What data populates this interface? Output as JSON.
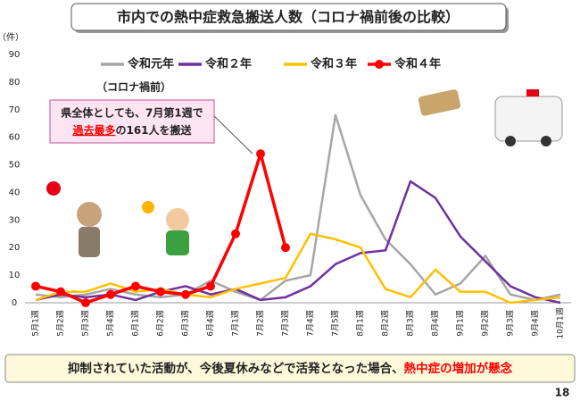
{
  "chart_data": {
    "type": "line",
    "title": "市内での熱中症救急搬送人数（コロナ禍前後の比較）",
    "y_label": "（件）",
    "categories": [
      "5月1週",
      "5月2週",
      "5月3週",
      "5月4週",
      "6月1週",
      "6月2週",
      "6月3週",
      "6月4週",
      "7月1週",
      "7月2週",
      "7月3週",
      "7月4週",
      "7月5週",
      "8月1週",
      "8月2週",
      "8月3週",
      "8月4週",
      "9月1週",
      "9月2週",
      "9月3週",
      "9月4週",
      "10月1週"
    ],
    "series": [
      {
        "name": "令和元年",
        "color": "#a6a6a6",
        "values": [
          3,
          2,
          3,
          5,
          3,
          2,
          3,
          8,
          4,
          1,
          8,
          10,
          68,
          39,
          23,
          14,
          3,
          7,
          17,
          3,
          1,
          3
        ]
      },
      {
        "name": "令和２年",
        "color": "#7030a0",
        "values": [
          1,
          3,
          2,
          3,
          1,
          4,
          6,
          3,
          5,
          1,
          2,
          6,
          14,
          18,
          19,
          44,
          38,
          24,
          15,
          6,
          2,
          0
        ]
      },
      {
        "name": "令和３年",
        "color": "#ffc000",
        "values": [
          1,
          4,
          4,
          7,
          4,
          5,
          3,
          2,
          5,
          7,
          9,
          25,
          23,
          20,
          5,
          2,
          12,
          4,
          4,
          0,
          1,
          2
        ]
      },
      {
        "name": "令和４年",
        "color": "#ff0000",
        "values": [
          6,
          4,
          0,
          3,
          6,
          4,
          3,
          6,
          25,
          54,
          20,
          null,
          null,
          null,
          null,
          null,
          null,
          null,
          null,
          null,
          null,
          null
        ]
      }
    ],
    "legend_note": "（コロナ禍前）",
    "annotation": {
      "line1": "県全体としても、7月第1週で",
      "line2_highlight": "過去最多",
      "line2_rest": "の161人を搬送"
    },
    "ylim": [
      0,
      90
    ],
    "yticks": [
      0,
      10,
      20,
      30,
      40,
      50,
      60,
      70,
      80,
      90
    ],
    "grid": false,
    "footer": {
      "text": "抑制されていた活動が、今後夏休みなどで活発となった場合、",
      "highlight": "熱中症の増加が懸念"
    },
    "page_number": "18"
  }
}
